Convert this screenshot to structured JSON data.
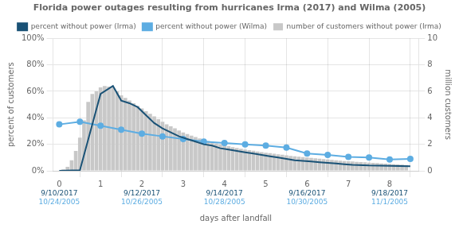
{
  "chart_data": {
    "type": "bar",
    "title": "Florida power outages resulting from hurricanes Irma (2017) and Wilma (2005)",
    "x_label": "days after landfall",
    "y_label": "percent of customers",
    "y2_label": "million customers",
    "xlim": [
      -0.15,
      8.7
    ],
    "xticks": [
      0,
      1,
      2,
      3,
      4,
      5,
      6,
      7,
      8
    ],
    "ylim": [
      0,
      1.0
    ],
    "yticks": [
      {
        "value": 0,
        "label": "0%"
      },
      {
        "value": 0.2,
        "label": "20%"
      },
      {
        "value": 0.4,
        "label": "40%"
      },
      {
        "value": 0.6,
        "label": "60%"
      },
      {
        "value": 0.8,
        "label": "80%"
      },
      {
        "value": 1.0,
        "label": "100%"
      }
    ],
    "y2lim": [
      0,
      10
    ],
    "y2ticks": [
      0,
      2,
      4,
      6,
      8,
      10
    ],
    "grid": true,
    "legend": "top",
    "series": [
      {
        "name": "number of customers without power (Irma)",
        "type": "bar",
        "axis": "y2",
        "color": "#c8c8c8",
        "x": [
          0.1,
          0.2,
          0.3,
          0.4,
          0.5,
          0.6,
          0.7,
          0.8,
          0.9,
          1.0,
          1.1,
          1.2,
          1.3,
          1.4,
          1.5,
          1.6,
          1.7,
          1.8,
          1.9,
          2.0,
          2.1,
          2.2,
          2.3,
          2.4,
          2.5,
          2.6,
          2.7,
          2.8,
          2.9,
          3.0,
          3.1,
          3.2,
          3.3,
          3.4,
          3.5,
          3.6,
          3.7,
          3.8,
          3.9,
          4.0,
          4.1,
          4.2,
          4.3,
          4.4,
          4.5,
          4.6,
          4.7,
          4.8,
          4.9,
          5.0,
          5.1,
          5.2,
          5.3,
          5.4,
          5.5,
          5.6,
          5.7,
          5.8,
          5.9,
          6.0,
          6.1,
          6.2,
          6.3,
          6.4,
          6.5,
          6.6,
          6.7,
          6.8,
          6.9,
          7.0,
          7.1,
          7.2,
          7.3,
          7.4,
          7.5,
          7.6,
          7.7,
          7.8,
          7.9,
          8.0,
          8.1,
          8.2,
          8.3,
          8.4
        ],
        "values": [
          0.1,
          0.3,
          0.8,
          1.5,
          2.5,
          3.8,
          5.2,
          5.8,
          6.0,
          6.3,
          6.4,
          6.35,
          6.3,
          6.0,
          5.7,
          5.5,
          5.3,
          5.1,
          4.9,
          4.7,
          4.5,
          4.3,
          4.1,
          3.9,
          3.7,
          3.5,
          3.35,
          3.2,
          3.05,
          2.9,
          2.78,
          2.65,
          2.55,
          2.45,
          2.35,
          2.25,
          2.15,
          2.07,
          2.0,
          1.93,
          1.86,
          1.79,
          1.73,
          1.67,
          1.61,
          1.56,
          1.51,
          1.46,
          1.41,
          1.37,
          1.33,
          1.29,
          1.25,
          1.21,
          1.17,
          1.13,
          1.09,
          1.06,
          1.03,
          1.0,
          0.97,
          0.94,
          0.91,
          0.88,
          0.85,
          0.82,
          0.79,
          0.76,
          0.74,
          0.72,
          0.7,
          0.68,
          0.66,
          0.64,
          0.62,
          0.6,
          0.58,
          0.56,
          0.54,
          0.52,
          0.5,
          0.48,
          0.46,
          0.44
        ]
      },
      {
        "name": "percent without power (Irma)",
        "type": "line",
        "color": "#1a5276",
        "marker": "none",
        "x": [
          0.0,
          0.5,
          1.0,
          1.3,
          1.5,
          1.7,
          1.9,
          2.1,
          2.3,
          2.5,
          2.7,
          2.9,
          3.1,
          3.3,
          3.5,
          3.7,
          3.9,
          4.1,
          4.3,
          4.5,
          4.7,
          4.9,
          5.1,
          5.3,
          5.5,
          5.7,
          5.9,
          6.1,
          6.3,
          6.5,
          6.7,
          6.9,
          7.1,
          7.5,
          8.5
        ],
        "values": [
          0.0,
          0.005,
          0.58,
          0.64,
          0.53,
          0.51,
          0.48,
          0.42,
          0.36,
          0.32,
          0.29,
          0.26,
          0.24,
          0.22,
          0.2,
          0.19,
          0.17,
          0.16,
          0.15,
          0.14,
          0.13,
          0.12,
          0.11,
          0.1,
          0.09,
          0.08,
          0.075,
          0.07,
          0.065,
          0.06,
          0.055,
          0.05,
          0.045,
          0.04,
          0.035
        ]
      },
      {
        "name": "percent without power (Wilma)",
        "type": "line",
        "color": "#5dade2",
        "marker": "circle",
        "x": [
          0.0,
          0.5,
          1.0,
          1.5,
          2.0,
          2.5,
          3.0,
          3.5,
          4.0,
          4.5,
          5.0,
          5.5,
          6.0,
          6.5,
          7.0,
          7.5,
          8.0,
          8.5
        ],
        "values": [
          0.35,
          0.37,
          0.34,
          0.31,
          0.28,
          0.26,
          0.24,
          0.22,
          0.21,
          0.2,
          0.19,
          0.175,
          0.13,
          0.12,
          0.105,
          0.1,
          0.085,
          0.09
        ]
      }
    ],
    "annotations": [
      {
        "x": 0,
        "text": "9/10/2017",
        "color": "#1a5276"
      },
      {
        "x": 2,
        "text": "9/12/2017",
        "color": "#1a5276"
      },
      {
        "x": 4,
        "text": "9/14/2017",
        "color": "#1a5276"
      },
      {
        "x": 6,
        "text": "9/16/2017",
        "color": "#1a5276"
      },
      {
        "x": 8,
        "text": "9/18/2017",
        "color": "#1a5276"
      },
      {
        "x": 0,
        "text": "10/24/2005",
        "color": "#5dade2"
      },
      {
        "x": 2,
        "text": "10/26/2005",
        "color": "#5dade2"
      },
      {
        "x": 4,
        "text": "10/28/2005",
        "color": "#5dade2"
      },
      {
        "x": 6,
        "text": "10/30/2005",
        "color": "#5dade2"
      },
      {
        "x": 8,
        "text": "11/1/2005",
        "color": "#5dade2"
      }
    ]
  }
}
